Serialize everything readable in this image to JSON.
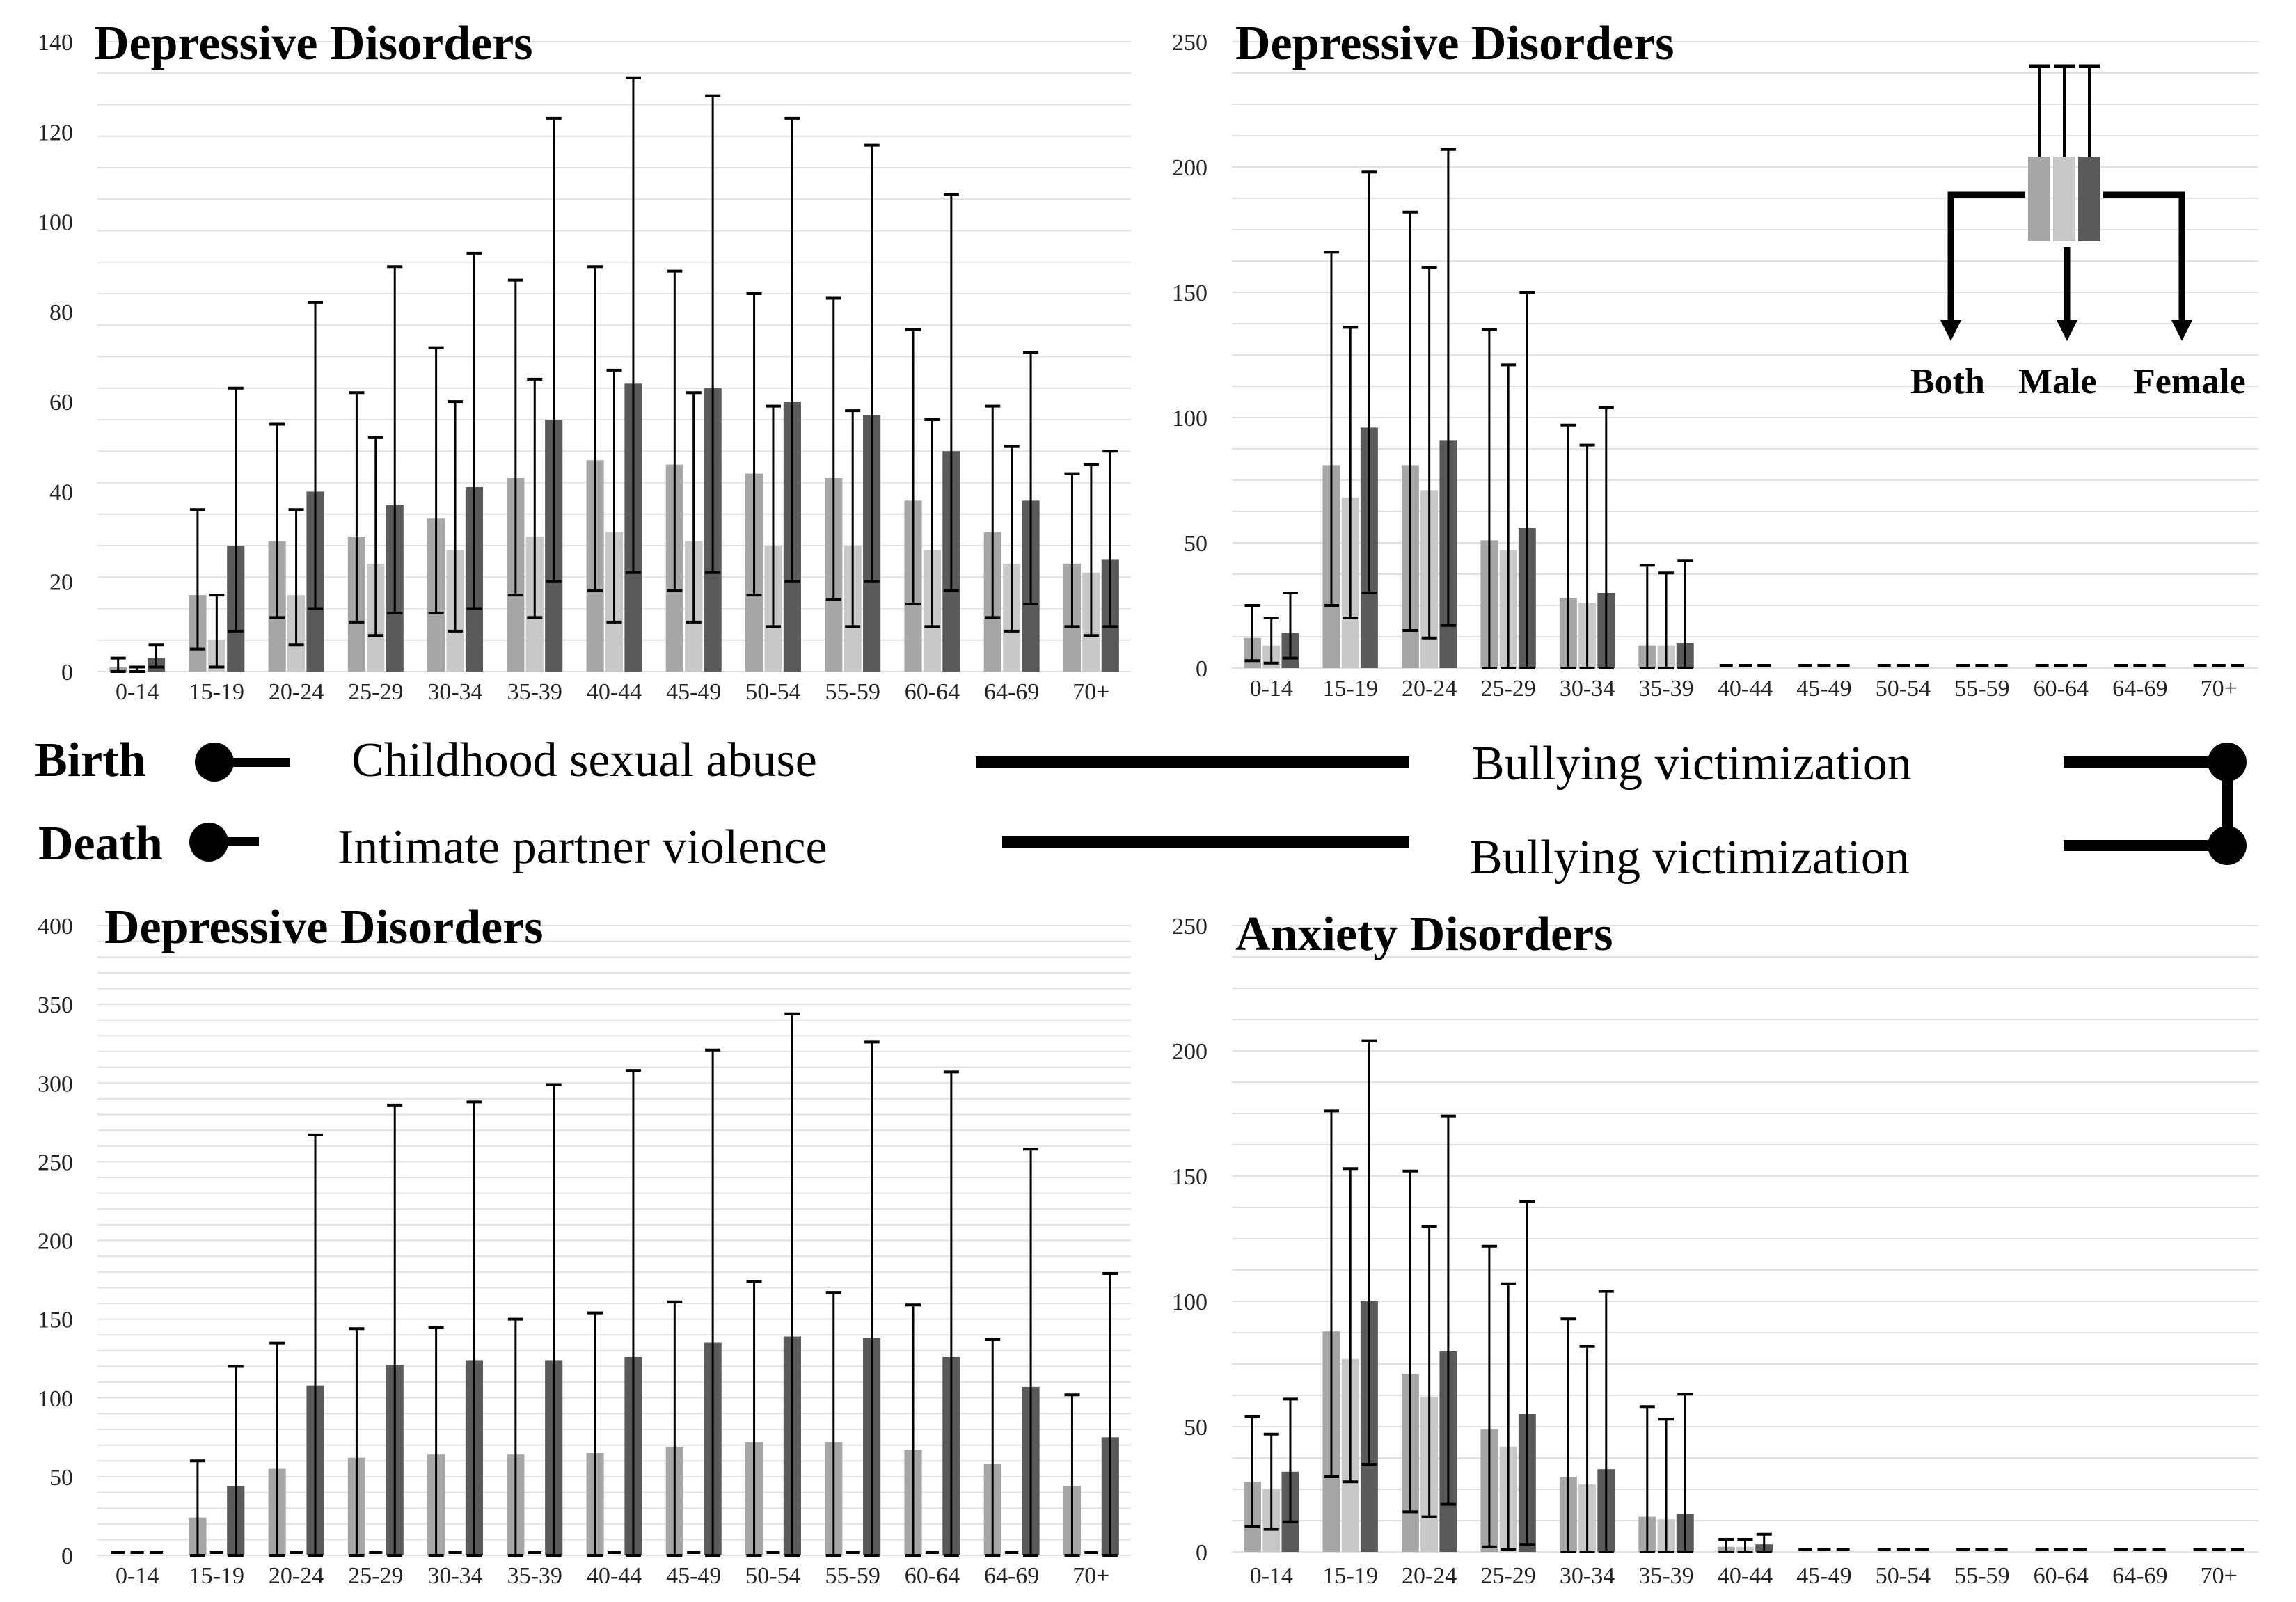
{
  "timeline": {
    "birth": "Birth",
    "death": "Death",
    "row1_left": "Childhood sexual abuse",
    "row1_right": "Bullying victimization",
    "row2_left": "Intimate partner violence",
    "row2_right": "Bullying victimization"
  },
  "legend": {
    "both": "Both",
    "male": "Male",
    "female": "Female",
    "colors": {
      "both": "#a6a6a6",
      "male": "#c8c8c8",
      "female": "#5a5a5a"
    }
  },
  "chart_data": [
    {
      "id": "tl",
      "type": "bar",
      "title": "Depressive Disorders",
      "ylim": [
        0,
        140
      ],
      "yticks": [
        0,
        20,
        40,
        60,
        80,
        100,
        120,
        140
      ],
      "categories": [
        "0-14",
        "15-19",
        "20-24",
        "25-29",
        "30-34",
        "35-39",
        "40-44",
        "45-49",
        "50-54",
        "55-59",
        "60-64",
        "64-69",
        "70+"
      ],
      "series": [
        {
          "name": "Both",
          "values": [
            1,
            17,
            29,
            30,
            34,
            43,
            47,
            46,
            44,
            43,
            38,
            31,
            24
          ],
          "lower": [
            0,
            5,
            12,
            11,
            13,
            17,
            18,
            18,
            17,
            16,
            15,
            12,
            10
          ],
          "upper": [
            3,
            36,
            55,
            62,
            72,
            87,
            90,
            89,
            84,
            83,
            76,
            59,
            44
          ]
        },
        {
          "name": "Male",
          "values": [
            0,
            7,
            17,
            24,
            27,
            30,
            31,
            29,
            28,
            28,
            27,
            24,
            22
          ],
          "lower": [
            0,
            1,
            6,
            8,
            9,
            12,
            11,
            11,
            10,
            10,
            10,
            9,
            8
          ],
          "upper": [
            1,
            17,
            36,
            52,
            60,
            65,
            67,
            62,
            59,
            58,
            56,
            50,
            46
          ]
        },
        {
          "name": "Female",
          "values": [
            3,
            28,
            40,
            37,
            41,
            56,
            64,
            63,
            60,
            57,
            49,
            38,
            25
          ],
          "lower": [
            1,
            9,
            14,
            13,
            14,
            20,
            22,
            22,
            20,
            20,
            18,
            15,
            10
          ],
          "upper": [
            6,
            63,
            82,
            90,
            93,
            123,
            132,
            128,
            123,
            117,
            106,
            71,
            49
          ]
        }
      ]
    },
    {
      "id": "tr",
      "type": "bar",
      "title": "Depressive Disorders",
      "ylim": [
        0,
        250
      ],
      "yticks": [
        0,
        50,
        100,
        150,
        200,
        250
      ],
      "categories": [
        "0-14",
        "15-19",
        "20-24",
        "25-29",
        "30-34",
        "35-39",
        "40-44",
        "45-49",
        "50-54",
        "55-59",
        "60-64",
        "64-69",
        "70+"
      ],
      "series": [
        {
          "name": "Both",
          "values": [
            12,
            81,
            81,
            51,
            28,
            9,
            0,
            0,
            0,
            0,
            0,
            0,
            0
          ],
          "lower": [
            3,
            25,
            15,
            0,
            0,
            0,
            0,
            0,
            0,
            0,
            0,
            0,
            0
          ],
          "upper": [
            25,
            166,
            182,
            135,
            97,
            41,
            0,
            0,
            0,
            0,
            0,
            0,
            0
          ]
        },
        {
          "name": "Male",
          "values": [
            9,
            68,
            71,
            47,
            26,
            9,
            0,
            0,
            0,
            0,
            0,
            0,
            0
          ],
          "lower": [
            2,
            20,
            12,
            0,
            0,
            0,
            0,
            0,
            0,
            0,
            0,
            0,
            0
          ],
          "upper": [
            20,
            136,
            160,
            121,
            89,
            38,
            0,
            0,
            0,
            0,
            0,
            0,
            0
          ]
        },
        {
          "name": "Female",
          "values": [
            14,
            96,
            91,
            56,
            30,
            10,
            0,
            0,
            0,
            0,
            0,
            0,
            0
          ],
          "lower": [
            4,
            30,
            17,
            0,
            0,
            0,
            0,
            0,
            0,
            0,
            0,
            0,
            0
          ],
          "upper": [
            30,
            198,
            207,
            150,
            104,
            43,
            0,
            0,
            0,
            0,
            0,
            0,
            0
          ]
        }
      ]
    },
    {
      "id": "bl",
      "type": "bar",
      "title": "Depressive Disorders",
      "ylim": [
        0,
        400
      ],
      "yticks": [
        0,
        50,
        100,
        150,
        200,
        250,
        300,
        350,
        400
      ],
      "categories": [
        "0-14",
        "15-19",
        "20-24",
        "25-29",
        "30-34",
        "35-39",
        "40-44",
        "45-49",
        "50-54",
        "55-59",
        "60-64",
        "64-69",
        "70+"
      ],
      "series": [
        {
          "name": "Both",
          "values": [
            0,
            24,
            55,
            62,
            64,
            64,
            65,
            69,
            72,
            72,
            67,
            58,
            44
          ],
          "lower": [
            0,
            0,
            0,
            0,
            0,
            0,
            0,
            0,
            0,
            0,
            0,
            0,
            0
          ],
          "upper": [
            0,
            60,
            135,
            144,
            145,
            150,
            154,
            161,
            174,
            167,
            159,
            137,
            102
          ]
        },
        {
          "name": "Male",
          "values": [
            0,
            0,
            0,
            0,
            0,
            0,
            0,
            0,
            0,
            0,
            0,
            0,
            0
          ],
          "lower": [
            0,
            0,
            0,
            0,
            0,
            0,
            0,
            0,
            0,
            0,
            0,
            0,
            0
          ],
          "upper": [
            0,
            0,
            0,
            0,
            0,
            0,
            0,
            0,
            0,
            0,
            0,
            0,
            0
          ]
        },
        {
          "name": "Female",
          "values": [
            0,
            44,
            108,
            121,
            124,
            124,
            126,
            135,
            139,
            138,
            126,
            107,
            75
          ],
          "lower": [
            0,
            0,
            0,
            0,
            0,
            0,
            0,
            0,
            0,
            0,
            0,
            0,
            0
          ],
          "upper": [
            0,
            120,
            267,
            286,
            288,
            299,
            308,
            321,
            344,
            326,
            307,
            258,
            179
          ]
        }
      ]
    },
    {
      "id": "br",
      "type": "bar",
      "title": "Anxiety Disorders",
      "ylim": [
        0,
        250
      ],
      "yticks": [
        0,
        50,
        100,
        150,
        200,
        250
      ],
      "categories": [
        "0-14",
        "15-19",
        "20-24",
        "25-29",
        "30-34",
        "35-39",
        "40-44",
        "45-49",
        "50-54",
        "55-59",
        "60-64",
        "64-69",
        "70+"
      ],
      "series": [
        {
          "name": "Both",
          "values": [
            28,
            88,
            71,
            49,
            30,
            14,
            2,
            0,
            0,
            0,
            0,
            0,
            0
          ],
          "lower": [
            10,
            30,
            16,
            2,
            0,
            0,
            0,
            0,
            0,
            0,
            0,
            0,
            0
          ],
          "upper": [
            54,
            176,
            152,
            122,
            93,
            58,
            5,
            0,
            0,
            0,
            0,
            0,
            0
          ]
        },
        {
          "name": "Male",
          "values": [
            25,
            77,
            62,
            42,
            27,
            13,
            2,
            0,
            0,
            0,
            0,
            0,
            0
          ],
          "lower": [
            9,
            28,
            14,
            1,
            0,
            0,
            0,
            0,
            0,
            0,
            0,
            0,
            0
          ],
          "upper": [
            47,
            153,
            130,
            107,
            82,
            53,
            5,
            0,
            0,
            0,
            0,
            0,
            0
          ]
        },
        {
          "name": "Female",
          "values": [
            32,
            100,
            80,
            55,
            33,
            15,
            3,
            0,
            0,
            0,
            0,
            0,
            0
          ],
          "lower": [
            12,
            35,
            19,
            3,
            0,
            0,
            0,
            0,
            0,
            0,
            0,
            0,
            0
          ],
          "upper": [
            61,
            204,
            174,
            140,
            104,
            63,
            7,
            0,
            0,
            0,
            0,
            0,
            0
          ]
        }
      ]
    }
  ]
}
